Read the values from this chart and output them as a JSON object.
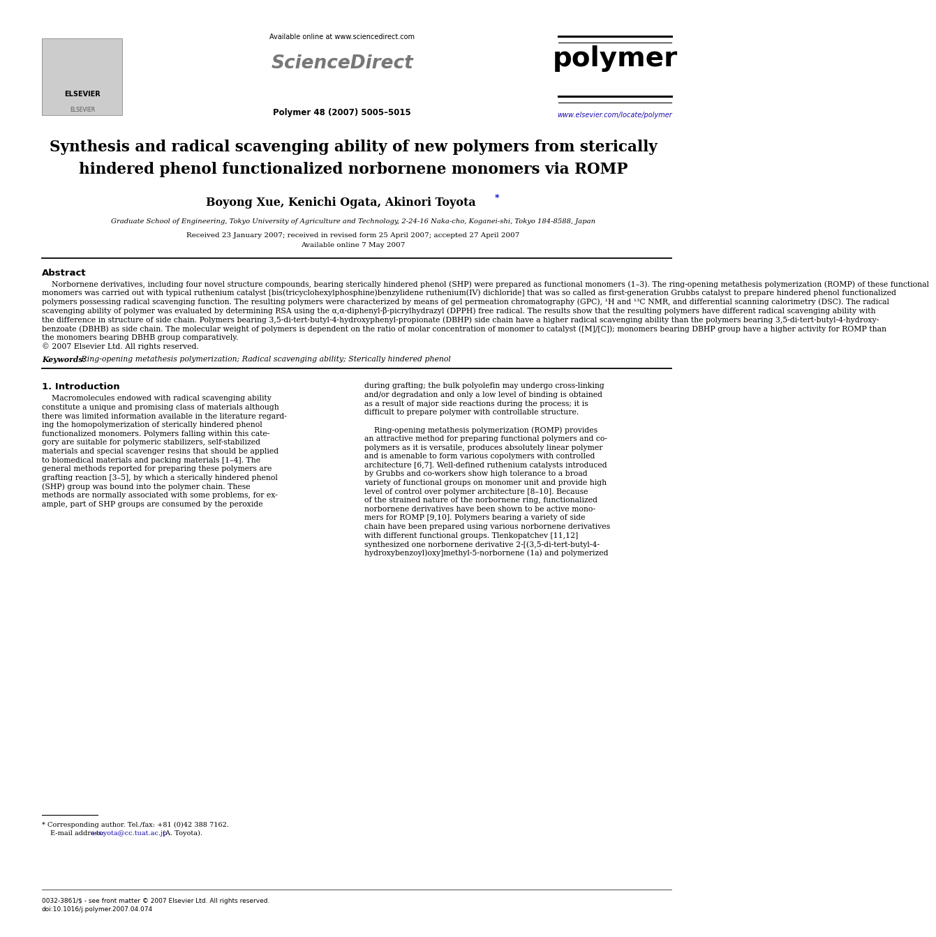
{
  "bg_color": "#ffffff",
  "header": {
    "available_online": "Available online at www.sciencedirect.com",
    "sciencedirect": "ScienceDirect",
    "journal_name": "polymer",
    "journal_issue": "Polymer 48 (2007) 5005–5015",
    "journal_url": "www.elsevier.com/locate/polymer"
  },
  "title_line1": "Synthesis and radical scavenging ability of new polymers from sterically",
  "title_line2": "hindered phenol functionalized norbornene monomers via ROMP",
  "authors_text": "Boyong Xue, Kenichi Ogata, Akinori Toyota",
  "affiliation": "Graduate School of Engineering, Tokyo University of Agriculture and Technology, 2-24-16 Naka-cho, Koganei-shi, Tokyo 184-8588, Japan",
  "received": "Received 23 January 2007; received in revised form 25 April 2007; accepted 27 April 2007",
  "available": "Available online 7 May 2007",
  "abstract_title": "Abstract",
  "abstract_lines": [
    "    Norbornene derivatives, including four novel structure compounds, bearing sterically hindered phenol (SHP) were prepared as functional monomers (1–3). The ring-opening metathesis polymerization (ROMP) of these functional",
    "monomers was carried out with typical ruthenium catalyst [bis(tricyclohexylphosphine)benzylidene ruthenium(IV) dichloride] that was so called as first-generation Grubbs catalyst to prepare hindered phenol functionalized",
    "polymers possessing radical scavenging function. The resulting polymers were characterized by means of gel permeation chromatography (GPC), ¹H and ¹³C NMR, and differential scanning calorimetry (DSC). The radical",
    "scavenging ability of polymer was evaluated by determining RSA using the α,α-diphenyl-β-picrylhydrazyl (DPPH) free radical. The results show that the resulting polymers have different radical scavenging ability with",
    "the difference in structure of side chain. Polymers bearing 3,5-di-tert-butyl-4-hydroxyphenyl-propionate (DBHP) side chain have a higher radical scavenging ability than the polymers bearing 3,5-di-tert-butyl-4-hydroxy-",
    "benzoate (DBHB) as side chain. The molecular weight of polymers is dependent on the ratio of molar concentration of monomer to catalyst ([M]/[C]); monomers bearing DBHP group have a higher activity for ROMP than",
    "the monomers bearing DBHB group comparatively.",
    "© 2007 Elsevier Ltd. All rights reserved."
  ],
  "keywords_label": "Keywords:",
  "keywords_text": " Ring-opening metathesis polymerization; Radical scavenging ability; Sterically hindered phenol",
  "intro_title": "1. Introduction",
  "left_col_lines": [
    "    Macromolecules endowed with radical scavenging ability",
    "constitute a unique and promising class of materials although",
    "there was limited information available in the literature regard-",
    "ing the homopolymerization of sterically hindered phenol",
    "functionalized monomers. Polymers falling within this cate-",
    "gory are suitable for polymeric stabilizers, self-stabilized",
    "materials and special scavenger resins that should be applied",
    "to biomedical materials and packing materials [1–4]. The",
    "general methods reported for preparing these polymers are",
    "grafting reaction [3–5], by which a sterically hindered phenol",
    "(SHP) group was bound into the polymer chain. These",
    "methods are normally associated with some problems, for ex-",
    "ample, part of SHP groups are consumed by the peroxide"
  ],
  "right_col_lines": [
    "during grafting; the bulk polyolefin may undergo cross-linking",
    "and/or degradation and only a low level of binding is obtained",
    "as a result of major side reactions during the process; it is",
    "difficult to prepare polymer with controllable structure.",
    "",
    "    Ring-opening metathesis polymerization (ROMP) provides",
    "an attractive method for preparing functional polymers and co-",
    "polymers as it is versatile, produces absolutely linear polymer",
    "and is amenable to form various copolymers with controlled",
    "architecture [6,7]. Well-defined ruthenium catalysts introduced",
    "by Grubbs and co-workers show high tolerance to a broad",
    "variety of functional groups on monomer unit and provide high",
    "level of control over polymer architecture [8–10]. Because",
    "of the strained nature of the norbornene ring, functionalized",
    "norbornene derivatives have been shown to be active mono-",
    "mers for ROMP [9,10]. Polymers bearing a variety of side",
    "chain have been prepared using various norbornene derivatives",
    "with different functional groups. Tlenkopatchev [11,12]",
    "synthesized one norbornene derivative 2-[(3,5-di-tert-butyl-4-",
    "hydroxybenzoyl)oxy]methyl-5-norbornene (1a) and polymerized"
  ],
  "footnote_line": "* Corresponding author. Tel./fax: +81 (0)42 388 7162.",
  "footnote_email_label": "E-mail address: ",
  "footnote_email": "a-toyota@cc.tuat.ac.jp",
  "footnote_email_tail": " (A. Toyota).",
  "footer_issn": "0032-3861/$ - see front matter © 2007 Elsevier Ltd. All rights reserved.",
  "footer_doi": "doi:10.1016/j.polymer.2007.04.074"
}
